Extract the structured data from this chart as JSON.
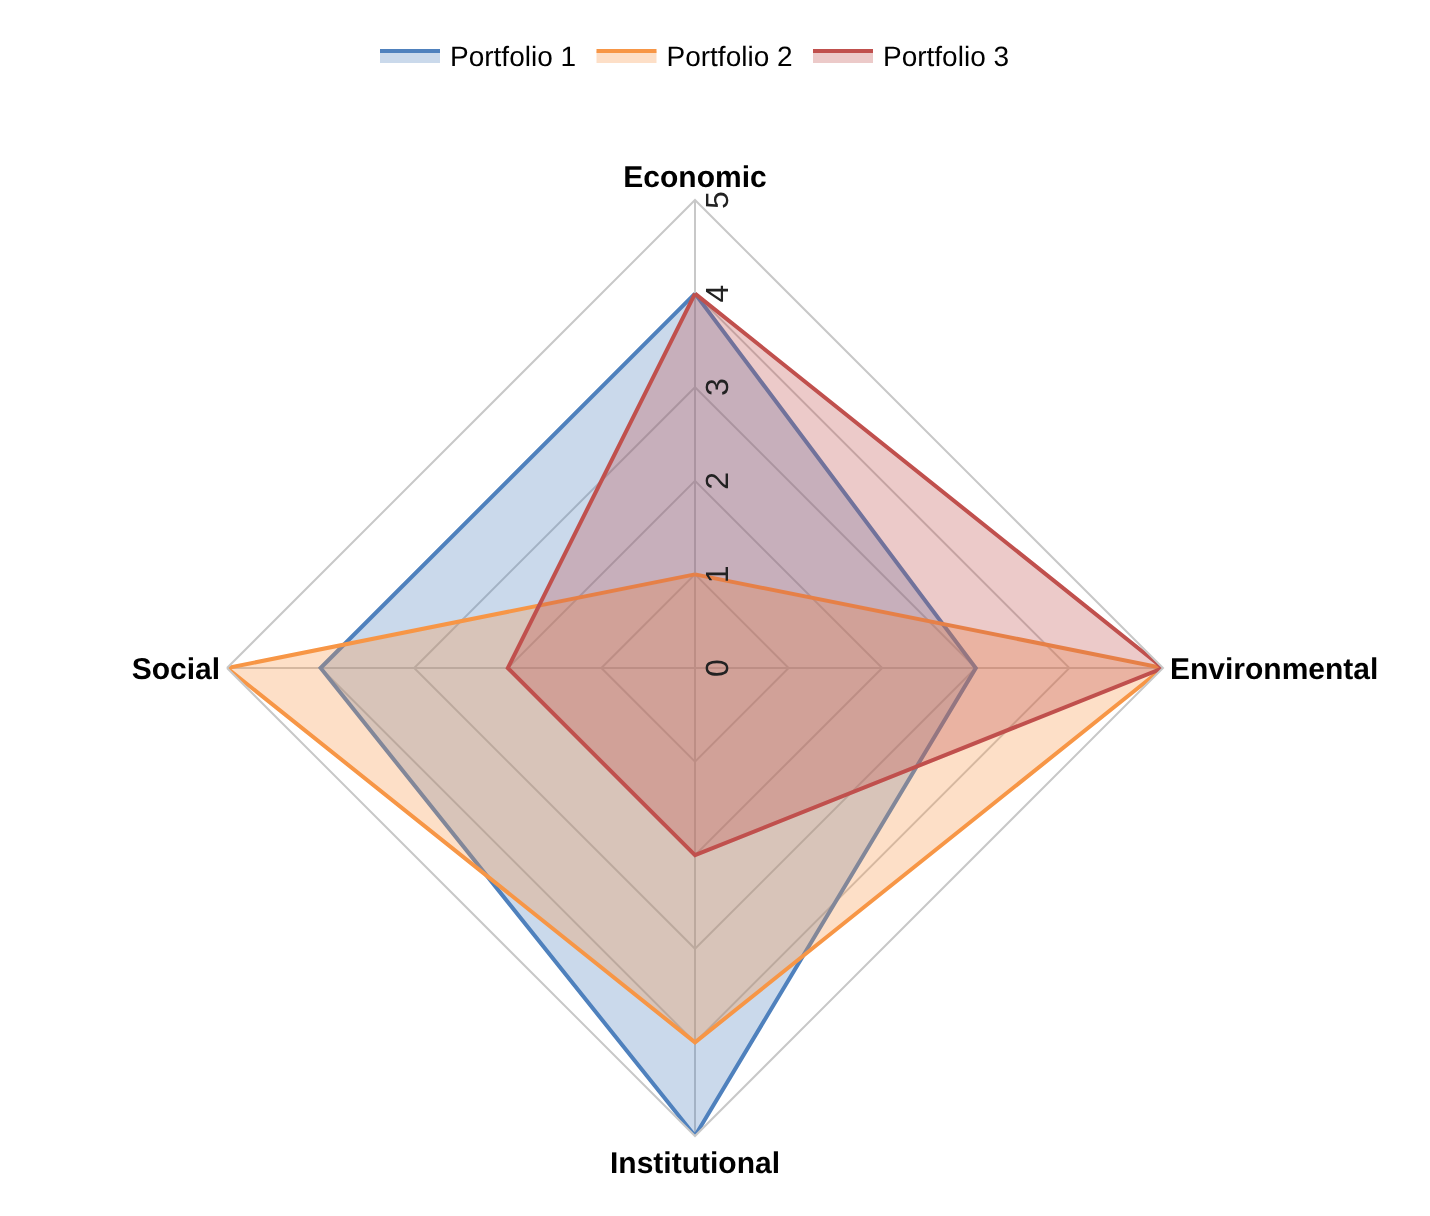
{
  "chart_data": {
    "type": "radar",
    "categories": [
      "Economic",
      "Environmental",
      "Institutional",
      "Social"
    ],
    "series": [
      {
        "name": "Portfolio 1",
        "color": "#4f81bd",
        "values": [
          4,
          3,
          5,
          4
        ]
      },
      {
        "name": "Portfolio 2",
        "color": "#f79646",
        "values": [
          1,
          5,
          4,
          5
        ]
      },
      {
        "name": "Portfolio 3",
        "color": "#c0504d",
        "values": [
          4,
          5,
          2,
          2
        ]
      }
    ],
    "ylim": [
      0,
      5
    ],
    "yticks": [
      0,
      1,
      2,
      3,
      4,
      5
    ],
    "grid": true,
    "legend": "top"
  }
}
